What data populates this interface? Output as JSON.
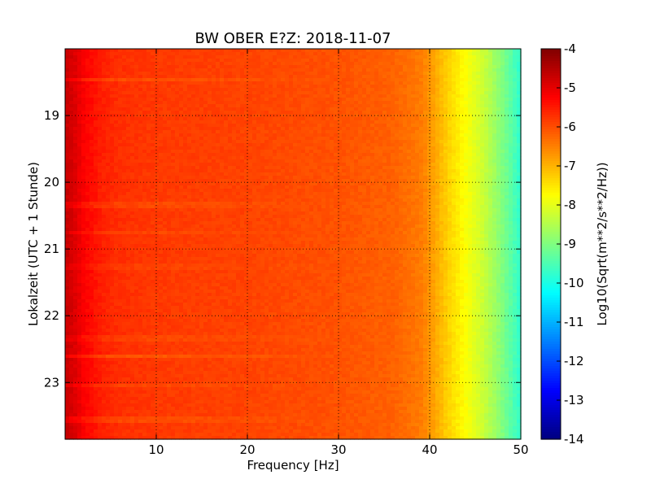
{
  "chart_data": {
    "type": "heatmap",
    "title": "BW OBER E?Z: 2018-11-07",
    "xlabel": "Frequency [Hz]",
    "ylabel": "Lokalzeit (UTC + 1 Stunde)",
    "xlim": [
      0,
      50
    ],
    "ylim": [
      18.0,
      23.85
    ],
    "y_inverted": true,
    "x_ticks": [
      "10",
      "20",
      "30",
      "40",
      "50"
    ],
    "x_tick_values": [
      10,
      20,
      30,
      40,
      50
    ],
    "y_ticks": [
      "19",
      "20",
      "21",
      "22",
      "23"
    ],
    "y_tick_values": [
      19,
      20,
      21,
      22,
      23
    ],
    "grid": true,
    "colormap": "jet",
    "colorbar": {
      "label": "Log10(Sqrt(m**2/s**2/Hz))",
      "range": [
        -14,
        -4
      ],
      "ticks": [
        "-4",
        "-5",
        "-6",
        "-7",
        "-8",
        "-9",
        "-10",
        "-11",
        "-12",
        "-13",
        "-14"
      ],
      "tick_values": [
        -4,
        -5,
        -6,
        -7,
        -8,
        -9,
        -10,
        -11,
        -12,
        -13,
        -14
      ]
    },
    "frequency_profile": {
      "frequency_hz": [
        0,
        1,
        2,
        4,
        6,
        10,
        20,
        30,
        36,
        39,
        40,
        41,
        42,
        44,
        46,
        48,
        49,
        50
      ],
      "log_amplitude": [
        -4.7,
        -4.9,
        -5.2,
        -5.55,
        -5.7,
        -5.8,
        -5.9,
        -6.05,
        -6.2,
        -6.45,
        -6.7,
        -7.0,
        -7.3,
        -7.8,
        -8.3,
        -9.0,
        -9.4,
        -9.8
      ]
    },
    "time_bands": [
      {
        "time": 18.46,
        "offset": -0.35
      },
      {
        "time": 20.35,
        "offset": -0.25
      },
      {
        "time": 20.75,
        "offset": -0.2
      },
      {
        "time": 21.28,
        "offset": -0.15
      },
      {
        "time": 22.35,
        "offset": -0.2
      },
      {
        "time": 22.6,
        "offset": -0.45
      },
      {
        "time": 23.05,
        "offset": -0.25
      },
      {
        "time": 23.55,
        "offset": -0.3
      }
    ]
  }
}
